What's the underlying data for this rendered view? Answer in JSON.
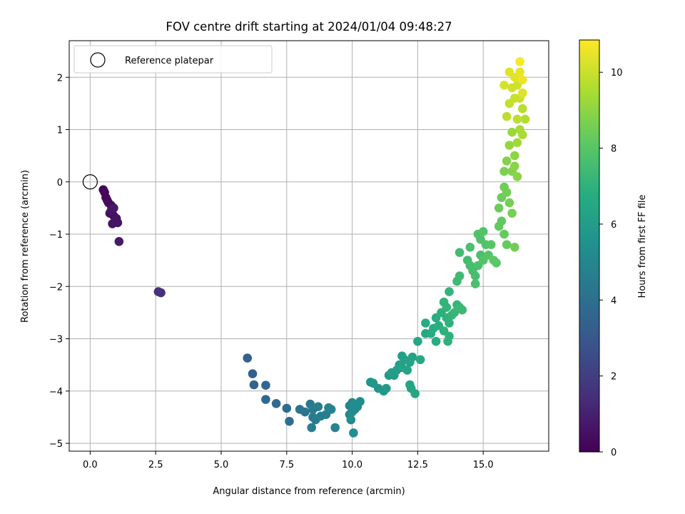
{
  "chart_data": {
    "type": "scatter",
    "title": "FOV centre drift starting at 2024/01/04 09:48:27",
    "xlabel": "Angular distance from reference (arcmin)",
    "ylabel": "Rotation from reference (arcmin)",
    "xlim": [
      -0.8,
      17.5
    ],
    "ylim": [
      -5.15,
      2.7
    ],
    "xticks": [
      0.0,
      2.5,
      5.0,
      7.5,
      10.0,
      12.5,
      15.0
    ],
    "xtick_labels": [
      "0.0",
      "2.5",
      "5.0",
      "7.5",
      "10.0",
      "12.5",
      "15.0"
    ],
    "yticks": [
      -5,
      -4,
      -3,
      -2,
      -1,
      0,
      1,
      2
    ],
    "ytick_labels": [
      "−5",
      "−4",
      "−3",
      "−2",
      "−1",
      "0",
      "1",
      "2"
    ],
    "grid": true,
    "legend": {
      "position": "upper-left",
      "label": "Reference platepar"
    },
    "reference_point": {
      "x": 0.0,
      "y": 0.0
    },
    "colorbar": {
      "label": "Hours from first FF file",
      "colormap": "viridis",
      "range": [
        0,
        10.85
      ],
      "ticks": [
        0,
        2,
        4,
        6,
        8,
        10
      ],
      "tick_labels": [
        "0",
        "2",
        "4",
        "6",
        "8",
        "10"
      ]
    },
    "series": [
      {
        "points": [
          [
            0.5,
            -0.15,
            0.1
          ],
          [
            0.55,
            -0.2,
            0.15
          ],
          [
            0.6,
            -0.3,
            0.2
          ],
          [
            0.65,
            -0.35,
            0.25
          ],
          [
            0.7,
            -0.4,
            0.3
          ],
          [
            0.8,
            -0.45,
            0.35
          ],
          [
            0.75,
            -0.6,
            0.4
          ],
          [
            0.9,
            -0.65,
            0.45
          ],
          [
            1.0,
            -0.7,
            0.5
          ],
          [
            0.85,
            -0.8,
            0.55
          ],
          [
            1.05,
            -0.78,
            0.6
          ],
          [
            0.95,
            -0.75,
            0.62
          ],
          [
            0.8,
            -0.55,
            0.65
          ],
          [
            0.9,
            -0.5,
            0.68
          ],
          [
            1.1,
            -1.14,
            0.75
          ],
          [
            2.6,
            -2.1,
            1.5
          ],
          [
            2.7,
            -2.12,
            1.55
          ],
          [
            6.0,
            -3.37,
            3.3
          ],
          [
            6.2,
            -3.67,
            3.4
          ],
          [
            6.25,
            -3.88,
            3.5
          ],
          [
            6.7,
            -3.89,
            3.6
          ],
          [
            6.7,
            -4.16,
            3.7
          ],
          [
            7.1,
            -4.24,
            3.8
          ],
          [
            7.5,
            -4.33,
            3.9
          ],
          [
            7.6,
            -4.58,
            4.0
          ],
          [
            8.0,
            -4.35,
            4.2
          ],
          [
            8.2,
            -4.4,
            4.3
          ],
          [
            8.4,
            -4.25,
            4.4
          ],
          [
            8.5,
            -4.5,
            4.5
          ],
          [
            8.6,
            -4.55,
            4.5
          ],
          [
            8.7,
            -4.3,
            4.6
          ],
          [
            8.5,
            -4.35,
            4.5
          ],
          [
            8.45,
            -4.7,
            4.6
          ],
          [
            8.8,
            -4.48,
            4.7
          ],
          [
            9.0,
            -4.45,
            4.7
          ],
          [
            9.1,
            -4.32,
            4.8
          ],
          [
            9.2,
            -4.35,
            4.8
          ],
          [
            9.35,
            -4.7,
            4.9
          ],
          [
            9.9,
            -4.28,
            5.0
          ],
          [
            10.0,
            -4.22,
            5.0
          ],
          [
            10.1,
            -4.35,
            5.1
          ],
          [
            9.9,
            -4.45,
            5.1
          ],
          [
            10.0,
            -4.4,
            5.2
          ],
          [
            10.2,
            -4.3,
            5.2
          ],
          [
            10.3,
            -4.2,
            5.3
          ],
          [
            9.95,
            -4.55,
            5.3
          ],
          [
            10.05,
            -4.8,
            5.4
          ],
          [
            10.1,
            -4.25,
            5.3
          ],
          [
            10.7,
            -3.83,
            5.6
          ],
          [
            10.8,
            -3.85,
            5.7
          ],
          [
            11.0,
            -3.95,
            5.7
          ],
          [
            11.2,
            -4.0,
            5.8
          ],
          [
            11.3,
            -3.95,
            5.9
          ],
          [
            11.4,
            -3.7,
            5.9
          ],
          [
            11.5,
            -3.65,
            6.0
          ],
          [
            11.6,
            -3.7,
            6.0
          ],
          [
            11.7,
            -3.6,
            6.1
          ],
          [
            11.8,
            -3.5,
            6.1
          ],
          [
            11.9,
            -3.55,
            6.2
          ],
          [
            12.0,
            -3.4,
            6.2
          ],
          [
            12.1,
            -3.6,
            6.3
          ],
          [
            11.9,
            -3.33,
            6.2
          ],
          [
            12.2,
            -3.45,
            6.3
          ],
          [
            12.3,
            -3.35,
            6.3
          ],
          [
            12.2,
            -3.88,
            6.4
          ],
          [
            12.25,
            -3.95,
            6.4
          ],
          [
            12.4,
            -4.05,
            6.5
          ],
          [
            12.5,
            -3.05,
            6.5
          ],
          [
            12.6,
            -3.4,
            6.6
          ],
          [
            12.8,
            -2.9,
            6.6
          ],
          [
            12.8,
            -2.7,
            6.7
          ],
          [
            13.0,
            -2.9,
            6.7
          ],
          [
            13.1,
            -2.8,
            6.8
          ],
          [
            13.2,
            -2.6,
            6.8
          ],
          [
            13.3,
            -2.75,
            6.9
          ],
          [
            13.2,
            -3.05,
            6.8
          ],
          [
            13.4,
            -2.5,
            6.9
          ],
          [
            13.5,
            -2.85,
            7.0
          ],
          [
            13.6,
            -2.6,
            7.0
          ],
          [
            13.7,
            -2.7,
            7.0
          ],
          [
            13.5,
            -2.3,
            7.1
          ],
          [
            13.7,
            -2.1,
            7.1
          ],
          [
            13.6,
            -2.4,
            7.1
          ],
          [
            13.65,
            -3.05,
            7.0
          ],
          [
            13.7,
            -2.95,
            7.0
          ],
          [
            13.8,
            -2.55,
            7.1
          ],
          [
            13.9,
            -2.5,
            7.2
          ],
          [
            14.0,
            -2.35,
            7.2
          ],
          [
            14.1,
            -2.4,
            7.3
          ],
          [
            14.2,
            -2.45,
            7.3
          ],
          [
            14.0,
            -1.9,
            7.4
          ],
          [
            14.1,
            -1.8,
            7.4
          ],
          [
            14.1,
            -1.35,
            7.5
          ],
          [
            14.4,
            -1.5,
            7.5
          ],
          [
            14.5,
            -1.6,
            7.6
          ],
          [
            14.6,
            -1.7,
            7.6
          ],
          [
            14.7,
            -1.8,
            7.6
          ],
          [
            14.8,
            -1.6,
            7.7
          ],
          [
            14.5,
            -1.25,
            7.7
          ],
          [
            14.9,
            -1.4,
            7.7
          ],
          [
            14.8,
            -1.0,
            7.8
          ],
          [
            14.9,
            -1.1,
            7.8
          ],
          [
            15.0,
            -0.95,
            7.9
          ],
          [
            15.1,
            -1.2,
            7.9
          ],
          [
            14.7,
            -1.95,
            7.7
          ],
          [
            15.0,
            -1.5,
            7.9
          ],
          [
            15.2,
            -1.4,
            8.0
          ],
          [
            15.3,
            -1.2,
            8.0
          ],
          [
            15.5,
            -1.55,
            8.1
          ],
          [
            15.4,
            -1.5,
            8.1
          ],
          [
            15.6,
            -0.85,
            8.2
          ],
          [
            15.7,
            -0.75,
            8.2
          ],
          [
            15.8,
            -1.0,
            8.3
          ],
          [
            15.9,
            -1.2,
            8.3
          ],
          [
            15.6,
            -0.5,
            8.4
          ],
          [
            15.7,
            -0.3,
            8.4
          ],
          [
            15.8,
            -0.1,
            8.5
          ],
          [
            15.9,
            -0.2,
            8.5
          ],
          [
            16.0,
            -0.4,
            8.6
          ],
          [
            16.1,
            -0.6,
            8.6
          ],
          [
            16.2,
            -1.25,
            8.5
          ],
          [
            15.8,
            0.2,
            8.7
          ],
          [
            15.9,
            0.4,
            8.8
          ],
          [
            16.1,
            0.2,
            8.8
          ],
          [
            16.2,
            0.3,
            8.9
          ],
          [
            16.3,
            0.1,
            8.9
          ],
          [
            16.2,
            0.5,
            9.0
          ],
          [
            16.0,
            0.7,
            9.1
          ],
          [
            16.1,
            0.95,
            9.2
          ],
          [
            16.3,
            0.75,
            9.3
          ],
          [
            16.4,
            1.0,
            9.4
          ],
          [
            16.5,
            0.9,
            9.5
          ],
          [
            16.6,
            1.2,
            9.6
          ],
          [
            16.5,
            1.4,
            9.7
          ],
          [
            16.3,
            1.2,
            9.8
          ],
          [
            15.9,
            1.25,
            9.8
          ],
          [
            16.0,
            1.5,
            9.9
          ],
          [
            16.2,
            1.6,
            10.0
          ],
          [
            16.4,
            1.6,
            10.0
          ],
          [
            16.1,
            1.8,
            10.1
          ],
          [
            16.3,
            1.85,
            10.1
          ],
          [
            15.8,
            1.85,
            10.2
          ],
          [
            16.5,
            1.7,
            10.3
          ],
          [
            16.0,
            2.1,
            10.4
          ],
          [
            16.2,
            2.0,
            10.4
          ],
          [
            16.4,
            2.1,
            10.5
          ],
          [
            16.5,
            1.95,
            10.6
          ],
          [
            16.4,
            2.3,
            10.8
          ]
        ]
      }
    ]
  }
}
